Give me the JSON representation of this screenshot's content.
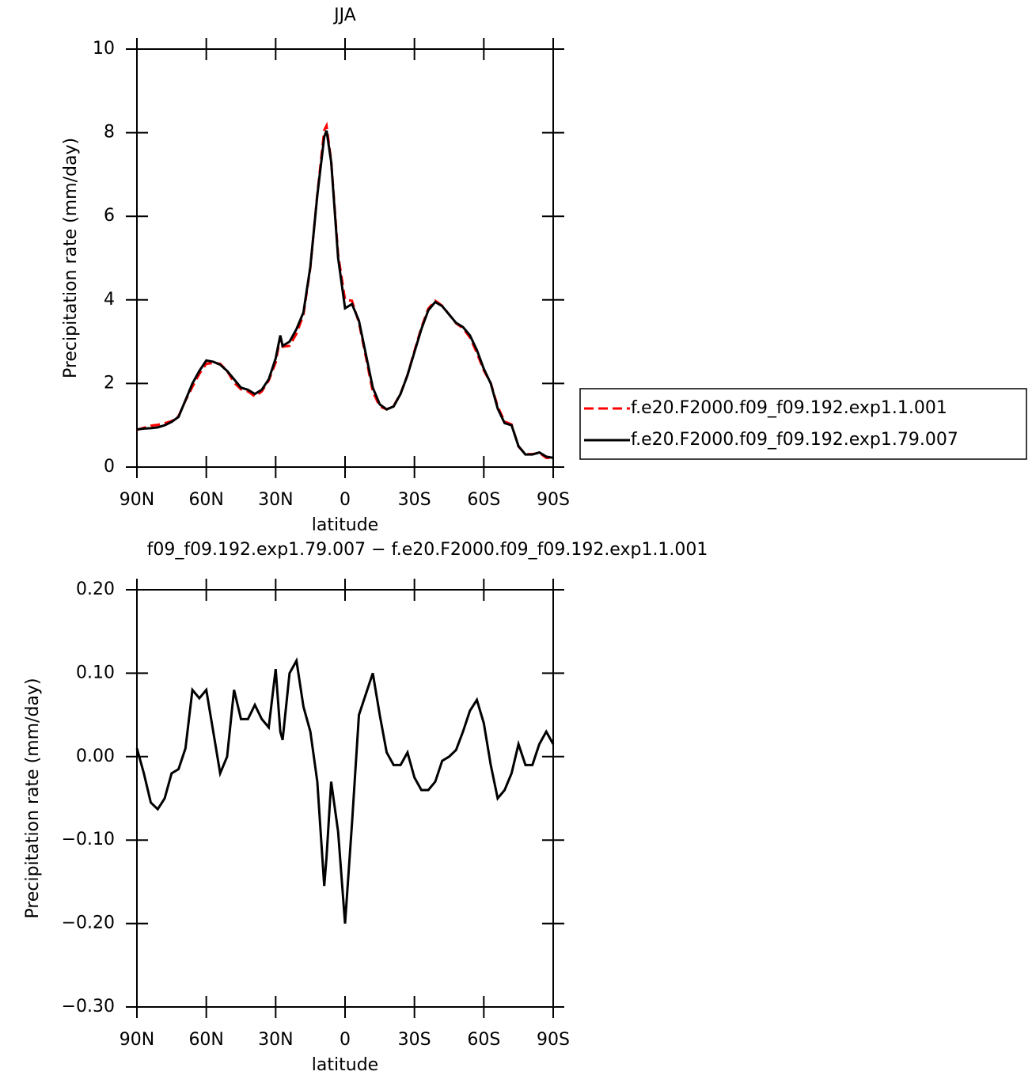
{
  "chart_data": [
    {
      "type": "line",
      "title": "JJA",
      "x_label": "latitude",
      "y_label": "Precipitation rate (mm/day)",
      "x": [
        90,
        87,
        84,
        81,
        78,
        75,
        72,
        69,
        66,
        63,
        60,
        57,
        54,
        51,
        48,
        45,
        42,
        39,
        36,
        33,
        30,
        28,
        27,
        24,
        21,
        18,
        15,
        12,
        9,
        8,
        6,
        3,
        0,
        -3,
        -6,
        -9,
        -12,
        -15,
        -18,
        -21,
        -24,
        -27,
        -30,
        -33,
        -36,
        -39,
        -42,
        -45,
        -48,
        -51,
        -54,
        -57,
        -60,
        -63,
        -66,
        -69,
        -72,
        -75,
        -78,
        -81,
        -84,
        -87,
        -90
      ],
      "series": [
        {
          "name": "f.e20.F2000.f09_f09.192.exp1.1.001",
          "color": "#ff0000",
          "line_style": "dashed",
          "values": [
            0.89,
            0.94,
            0.99,
            1.01,
            1.05,
            1.1,
            1.22,
            1.59,
            1.92,
            2.23,
            2.47,
            2.49,
            2.47,
            2.3,
            2.02,
            1.86,
            1.81,
            1.69,
            1.81,
            2.07,
            2.5,
            3.12,
            2.88,
            2.9,
            3.19,
            3.64,
            4.77,
            6.53,
            8.06,
            8.17,
            7.33,
            5.09,
            4.0,
            3.98,
            3.45,
            2.63,
            1.8,
            1.45,
            1.38,
            1.46,
            1.76,
            2.2,
            2.78,
            3.34,
            3.79,
            3.98,
            3.86,
            3.65,
            3.44,
            3.32,
            3.1,
            2.73,
            2.31,
            2.01,
            1.45,
            1.09,
            1.02,
            0.49,
            0.31,
            0.31,
            0.34,
            0.22,
            0.21
          ]
        },
        {
          "name": "f.e20.F2000.f09_f09.192.exp1.79.007",
          "color": "#000000",
          "line_style": "solid",
          "values": [
            0.9,
            0.92,
            0.93,
            0.95,
            1.0,
            1.08,
            1.2,
            1.6,
            2.0,
            2.3,
            2.55,
            2.52,
            2.45,
            2.3,
            2.1,
            1.9,
            1.85,
            1.75,
            1.85,
            2.1,
            2.6,
            3.15,
            2.9,
            3.0,
            3.3,
            3.7,
            4.8,
            6.5,
            7.9,
            8.05,
            7.3,
            5.0,
            3.8,
            3.9,
            3.5,
            2.7,
            1.9,
            1.5,
            1.38,
            1.45,
            1.75,
            2.2,
            2.75,
            3.3,
            3.75,
            3.95,
            3.85,
            3.65,
            3.45,
            3.35,
            3.15,
            2.8,
            2.35,
            2.0,
            1.4,
            1.05,
            1.0,
            0.5,
            0.3,
            0.3,
            0.35,
            0.25,
            0.22
          ]
        }
      ],
      "xlim": [
        90,
        -90
      ],
      "xticks": [
        {
          "value": 90,
          "label": "90N"
        },
        {
          "value": 60,
          "label": "60N"
        },
        {
          "value": 30,
          "label": "30N"
        },
        0,
        {
          "value": -30,
          "label": "30S"
        },
        {
          "value": -60,
          "label": "60S"
        },
        {
          "value": -90,
          "label": "90S"
        }
      ],
      "ylim": [
        0,
        10
      ],
      "yticks": [
        0,
        2,
        4,
        6,
        8,
        10
      ],
      "legend": "right"
    },
    {
      "type": "line",
      "title": "f09_f09.192.exp1.79.007 − f.e20.F2000.f09_f09.192.exp1.1.001",
      "x_label": "latitude",
      "y_label": "Precipitation rate (mm/day)",
      "x": [
        90,
        87,
        84,
        81,
        78,
        75,
        72,
        69,
        66,
        63,
        60,
        57,
        54,
        51,
        48,
        45,
        42,
        39,
        36,
        33,
        30,
        28,
        27,
        24,
        21,
        18,
        15,
        12,
        9,
        8,
        6,
        3,
        0,
        -3,
        -6,
        -9,
        -12,
        -15,
        -18,
        -21,
        -24,
        -27,
        -30,
        -33,
        -36,
        -39,
        -42,
        -45,
        -48,
        -51,
        -54,
        -57,
        -60,
        -63,
        -66,
        -69,
        -72,
        -75,
        -78,
        -81,
        -84,
        -87,
        -90
      ],
      "values": [
        0.01,
        -0.02,
        -0.055,
        -0.063,
        -0.05,
        -0.02,
        -0.015,
        0.01,
        0.08,
        0.07,
        0.08,
        0.03,
        -0.02,
        0.0,
        0.08,
        0.045,
        0.045,
        0.062,
        0.045,
        0.035,
        0.105,
        0.03,
        0.02,
        0.1,
        0.115,
        0.06,
        0.03,
        -0.03,
        -0.155,
        -0.12,
        -0.03,
        -0.09,
        -0.2,
        -0.08,
        0.05,
        0.075,
        0.1,
        0.05,
        0.005,
        -0.01,
        -0.01,
        0.005,
        -0.025,
        -0.04,
        -0.04,
        -0.03,
        -0.005,
        0.0,
        0.008,
        0.03,
        0.055,
        0.068,
        0.04,
        -0.01,
        -0.05,
        -0.04,
        -0.02,
        0.015,
        -0.01,
        -0.01,
        0.015,
        0.03,
        0.015
      ],
      "color": "#000000",
      "xlim": [
        90,
        -90
      ],
      "xticks": [
        {
          "value": 90,
          "label": "90N"
        },
        {
          "value": 60,
          "label": "60N"
        },
        {
          "value": 30,
          "label": "30N"
        },
        0,
        {
          "value": -30,
          "label": "30S"
        },
        {
          "value": -60,
          "label": "60S"
        },
        {
          "value": -90,
          "label": "90S"
        }
      ],
      "ylim": [
        -0.3,
        0.2
      ],
      "yticks": [
        {
          "value": 0.2,
          "label": "0.20"
        },
        {
          "value": 0.1,
          "label": "0.10"
        },
        {
          "value": 0,
          "label": "0.00"
        },
        {
          "value": -0.1,
          "label": "−0.10"
        },
        {
          "value": -0.2,
          "label": "−0.20"
        },
        {
          "value": -0.3,
          "label": "−0.30"
        }
      ]
    }
  ]
}
